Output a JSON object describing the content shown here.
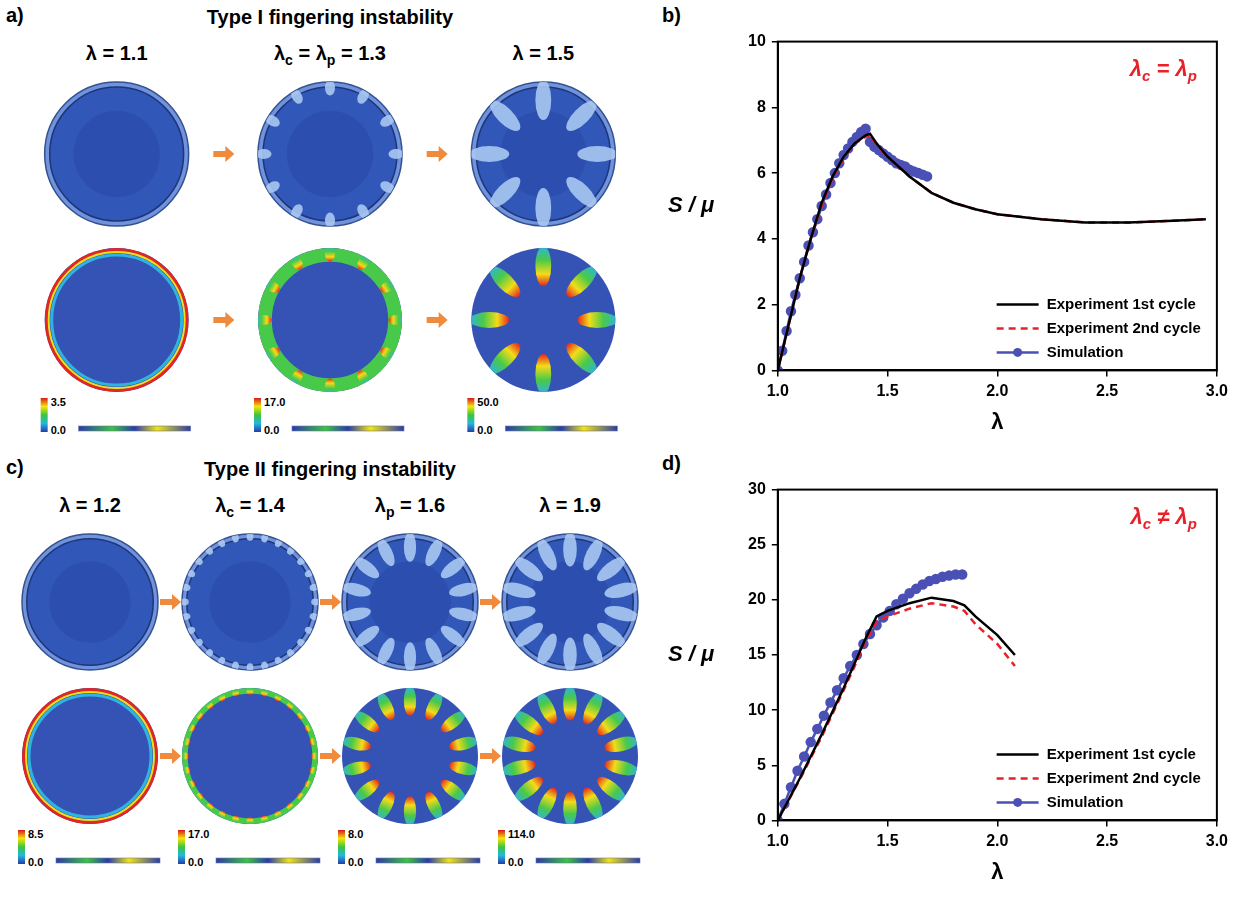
{
  "image_panels": [
    {
      "panel_label": "a)",
      "title": "Type I fingering instability",
      "frames": [
        {
          "label": "λ = 1.1",
          "colorbar_ticks": [
            {
              "value": 3.5,
              "label": "3.5"
            },
            {
              "value": 0,
              "label": "0.0"
            }
          ]
        },
        {
          "label": "λc = λp = 1.3",
          "colorbar_ticks": [
            {
              "value": 17,
              "label": "17.0"
            },
            {
              "value": 0,
              "label": "0.0"
            }
          ]
        },
        {
          "label": "λ = 1.5",
          "colorbar_ticks": [
            {
              "value": 50,
              "label": "50.0"
            },
            {
              "value": 0,
              "label": "0.0"
            }
          ]
        }
      ]
    },
    {
      "panel_label": "c)",
      "title": "Type II fingering instability",
      "frames": [
        {
          "label": "λ = 1.2",
          "colorbar_ticks": [
            {
              "value": 8.5,
              "label": "8.5"
            },
            {
              "value": 0,
              "label": "0.0"
            }
          ]
        },
        {
          "label": "λc = 1.4",
          "colorbar_ticks": [
            {
              "value": 17,
              "label": "17.0"
            },
            {
              "value": 0,
              "label": "0.0"
            }
          ]
        },
        {
          "label": "λp = 1.6",
          "colorbar_ticks": [
            {
              "value": 8,
              "label": "8.0"
            },
            {
              "value": 0,
              "label": "0.0"
            }
          ]
        },
        {
          "label": "λ = 1.9",
          "colorbar_ticks": [
            {
              "value": 114,
              "label": "114.0"
            },
            {
              "value": 0,
              "label": "0.0"
            }
          ]
        }
      ]
    }
  ],
  "chart_data": [
    {
      "panel_label": "b)",
      "type": "line",
      "annotation": "λc = λp",
      "x_label": "λ",
      "y_label": "S / μ",
      "xlim": [
        1,
        3
      ],
      "xticks": [
        {
          "value": 1,
          "label": "1.0"
        },
        {
          "value": 1.5,
          "label": "1.5"
        },
        {
          "value": 2,
          "label": "2.0"
        },
        {
          "value": 2.5,
          "label": "2.5"
        },
        {
          "value": 3,
          "label": "3.0"
        }
      ],
      "ylim": [
        0,
        10
      ],
      "yticks": [
        0,
        2,
        4,
        6,
        8,
        10
      ],
      "grid": false,
      "legend": "lower right",
      "series": [
        {
          "name": "Experiment 1st cycle",
          "color": "#000000",
          "line_style": "solid",
          "marker": "none",
          "x": [
            1.0,
            1.05,
            1.1,
            1.15,
            1.2,
            1.25,
            1.3,
            1.35,
            1.4,
            1.42,
            1.45,
            1.5,
            1.6,
            1.7,
            1.8,
            1.9,
            2.0,
            2.2,
            2.4,
            2.6,
            2.8,
            2.95
          ],
          "values": [
            0,
            1.4,
            2.8,
            4.0,
            5.1,
            5.9,
            6.5,
            6.9,
            7.15,
            7.2,
            6.9,
            6.5,
            5.9,
            5.4,
            5.1,
            4.9,
            4.75,
            4.6,
            4.5,
            4.5,
            4.55,
            4.6
          ]
        },
        {
          "name": "Experiment 2nd cycle",
          "color": "#e8202a",
          "line_style": "dashed",
          "marker": "none",
          "x": [
            1.0,
            1.05,
            1.1,
            1.15,
            1.2,
            1.25,
            1.3,
            1.35,
            1.4,
            1.42,
            1.45,
            1.5,
            1.6,
            1.7,
            1.8,
            1.9,
            2.0,
            2.2,
            2.4,
            2.6,
            2.8,
            2.95
          ],
          "values": [
            0,
            1.4,
            2.8,
            4.0,
            5.0,
            5.85,
            6.45,
            6.9,
            7.1,
            7.15,
            6.85,
            6.5,
            5.9,
            5.4,
            5.1,
            4.9,
            4.75,
            4.6,
            4.5,
            4.5,
            4.55,
            4.6
          ]
        },
        {
          "name": "Simulation",
          "color": "#4b50b5",
          "line_style": "solid",
          "marker": "circle",
          "x": [
            1.0,
            1.02,
            1.04,
            1.06,
            1.08,
            1.1,
            1.12,
            1.14,
            1.16,
            1.18,
            1.2,
            1.22,
            1.24,
            1.26,
            1.28,
            1.3,
            1.32,
            1.34,
            1.36,
            1.38,
            1.4,
            1.42,
            1.44,
            1.46,
            1.48,
            1.5,
            1.52,
            1.54,
            1.56,
            1.58,
            1.6,
            1.62,
            1.64,
            1.66,
            1.68
          ],
          "values": [
            0,
            0.6,
            1.2,
            1.8,
            2.3,
            2.8,
            3.3,
            3.8,
            4.2,
            4.6,
            5.0,
            5.35,
            5.7,
            6.0,
            6.3,
            6.55,
            6.75,
            6.95,
            7.1,
            7.25,
            7.35,
            6.95,
            6.8,
            6.7,
            6.6,
            6.5,
            6.4,
            6.3,
            6.25,
            6.2,
            6.1,
            6.05,
            6.0,
            5.95,
            5.9
          ]
        }
      ]
    },
    {
      "panel_label": "d)",
      "type": "line",
      "annotation": "λc ≠ λp",
      "x_label": "λ",
      "y_label": "S / μ",
      "xlim": [
        1,
        3
      ],
      "xticks": [
        {
          "value": 1,
          "label": "1.0"
        },
        {
          "value": 1.5,
          "label": "1.5"
        },
        {
          "value": 2,
          "label": "2.0"
        },
        {
          "value": 2.5,
          "label": "2.5"
        },
        {
          "value": 3,
          "label": "3.0"
        }
      ],
      "ylim": [
        0,
        30
      ],
      "yticks": [
        0,
        5,
        10,
        15,
        20,
        25,
        30
      ],
      "grid": false,
      "legend": "lower right",
      "series": [
        {
          "name": "Experiment 1st cycle",
          "color": "#000000",
          "line_style": "solid",
          "marker": "none",
          "x": [
            1.0,
            1.1,
            1.2,
            1.3,
            1.4,
            1.45,
            1.5,
            1.6,
            1.7,
            1.8,
            1.85,
            1.9,
            2.0,
            2.08
          ],
          "values": [
            0,
            3.8,
            7.8,
            12.0,
            16.5,
            18.5,
            19.0,
            19.7,
            20.2,
            19.9,
            19.5,
            18.5,
            16.8,
            15.0
          ]
        },
        {
          "name": "Experiment 2nd cycle",
          "color": "#e8202a",
          "line_style": "dashed",
          "marker": "none",
          "x": [
            1.0,
            1.1,
            1.2,
            1.3,
            1.4,
            1.45,
            1.5,
            1.6,
            1.7,
            1.8,
            1.85,
            1.9,
            2.0,
            2.08
          ],
          "values": [
            0,
            3.7,
            7.6,
            11.8,
            16.2,
            18.0,
            18.5,
            19.2,
            19.7,
            19.4,
            19.0,
            17.8,
            16.0,
            14.0
          ]
        },
        {
          "name": "Simulation",
          "color": "#4b50b5",
          "line_style": "solid",
          "marker": "circle",
          "x": [
            1.0,
            1.03,
            1.06,
            1.09,
            1.12,
            1.15,
            1.18,
            1.21,
            1.24,
            1.27,
            1.3,
            1.33,
            1.36,
            1.39,
            1.42,
            1.45,
            1.48,
            1.51,
            1.54,
            1.57,
            1.6,
            1.63,
            1.66,
            1.69,
            1.72,
            1.75,
            1.78,
            1.81,
            1.84
          ],
          "values": [
            0,
            1.5,
            3.0,
            4.5,
            5.8,
            7.1,
            8.3,
            9.5,
            10.7,
            11.8,
            12.9,
            14.0,
            15.0,
            16.0,
            16.9,
            17.7,
            18.4,
            19.0,
            19.6,
            20.1,
            20.6,
            21.0,
            21.4,
            21.7,
            21.9,
            22.1,
            22.2,
            22.3,
            22.3
          ]
        }
      ]
    }
  ]
}
